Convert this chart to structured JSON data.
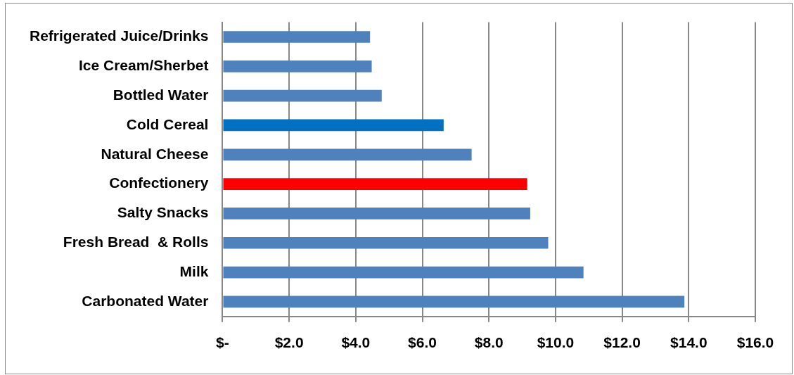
{
  "chart_data": {
    "type": "bar",
    "orientation": "horizontal",
    "categories": [
      "Refrigerated Juice/Drinks",
      "Ice Cream/Sherbet",
      "Bottled Water",
      "Cold Cereal",
      "Natural Cheese",
      "Confectionery",
      "Salty Snacks",
      "Fresh Bread  & Rolls",
      "Milk",
      "Carbonated Water"
    ],
    "values": [
      4.43,
      4.48,
      4.78,
      6.64,
      7.48,
      9.15,
      9.24,
      9.78,
      10.84,
      13.87
    ],
    "colors": [
      "#4f81bd",
      "#4f81bd",
      "#4f81bd",
      "#0070c0",
      "#4f81bd",
      "#ff0000",
      "#4f81bd",
      "#4f81bd",
      "#4f81bd",
      "#4f81bd"
    ],
    "xlim": [
      0,
      16
    ],
    "xticks": [
      {
        "value": 0,
        "label": "$-"
      },
      {
        "value": 2,
        "label": "$2.0"
      },
      {
        "value": 4,
        "label": "$4.0"
      },
      {
        "value": 6,
        "label": "$6.0"
      },
      {
        "value": 8,
        "label": "$8.0"
      },
      {
        "value": 10,
        "label": "$10.0"
      },
      {
        "value": 12,
        "label": "$12.0"
      },
      {
        "value": 14,
        "label": "$14.0"
      },
      {
        "value": 16,
        "label": "$16.0"
      }
    ],
    "grid": "x",
    "legend": false
  }
}
